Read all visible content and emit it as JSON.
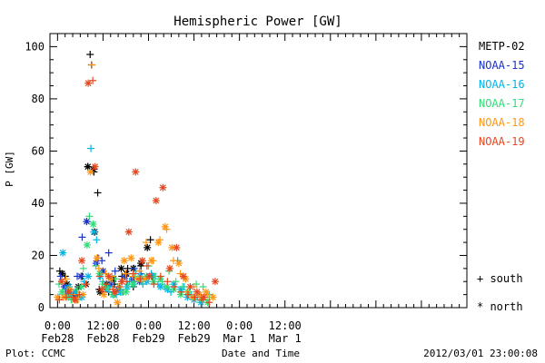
{
  "chart_data": {
    "type": "scatter",
    "title": "Hemispheric Power [GW]",
    "ylabel": "P [GW]",
    "xlabel": "Date and Time",
    "footer_left": "Plot: CCMC",
    "footer_right": "2012/03/01 23:00:08",
    "x_unit": "hours since 2012-02-28 00:00 UT",
    "xlim": [
      -2,
      108
    ],
    "ylim": [
      0,
      105
    ],
    "y_ticks": [
      0,
      20,
      40,
      60,
      80,
      100
    ],
    "x_ticks": [
      {
        "x": 0,
        "time": "0:00",
        "date": "Feb28"
      },
      {
        "x": 12,
        "time": "12:00",
        "date": "Feb28"
      },
      {
        "x": 24,
        "time": "0:00",
        "date": "Feb29"
      },
      {
        "x": 36,
        "time": "12:00",
        "date": "Feb29"
      },
      {
        "x": 48,
        "time": "0:00",
        "date": "Mar 1"
      },
      {
        "x": 60,
        "time": "12:00",
        "date": "Mar 1"
      }
    ],
    "grid": false,
    "legend_position": "right",
    "symbol_legend": [
      {
        "symbol": "+",
        "label": "south"
      },
      {
        "symbol": "*",
        "label": "north"
      }
    ],
    "series": [
      {
        "name": "METP-02",
        "color": "#000000",
        "south": [
          [
            0.6,
            14
          ],
          [
            2,
            12
          ],
          [
            3,
            7
          ],
          [
            5,
            6
          ],
          [
            6.5,
            12
          ],
          [
            8,
            54
          ],
          [
            8.6,
            97
          ],
          [
            9,
            93
          ],
          [
            9.6,
            52
          ],
          [
            10.6,
            44
          ],
          [
            11,
            7
          ],
          [
            12.5,
            8
          ],
          [
            13.5,
            6
          ],
          [
            15,
            9
          ],
          [
            17,
            12
          ],
          [
            18.5,
            15
          ],
          [
            20,
            8
          ],
          [
            22,
            16
          ],
          [
            24.5,
            26
          ],
          [
            25,
            12
          ]
        ],
        "north": [
          [
            1.2,
            13
          ],
          [
            2.5,
            9
          ],
          [
            4,
            5
          ],
          [
            5.5,
            8
          ],
          [
            7.5,
            9
          ],
          [
            8,
            54
          ],
          [
            9.4,
            53
          ],
          [
            9.8,
            29
          ],
          [
            11.2,
            6
          ],
          [
            13,
            9
          ],
          [
            14.8,
            11
          ],
          [
            16.8,
            15
          ],
          [
            18.2,
            13
          ],
          [
            20,
            15
          ],
          [
            22,
            17
          ],
          [
            23.7,
            23
          ]
        ]
      },
      {
        "name": "NOAA-15",
        "color": "#1832c8",
        "south": [
          [
            0.8,
            12
          ],
          [
            2.2,
            6
          ],
          [
            4,
            4
          ],
          [
            5.2,
            12
          ],
          [
            6.5,
            27
          ],
          [
            7.7,
            33
          ],
          [
            10.7,
            19
          ],
          [
            11.7,
            18
          ],
          [
            13.5,
            21
          ],
          [
            15.2,
            14
          ],
          [
            16.9,
            10
          ],
          [
            18.5,
            9
          ],
          [
            20.2,
            15
          ],
          [
            22,
            13
          ]
        ],
        "north": [
          [
            1.8,
            8
          ],
          [
            3.2,
            6
          ],
          [
            4.9,
            4
          ],
          [
            6.2,
            12
          ],
          [
            7.7,
            33
          ],
          [
            10.2,
            17
          ],
          [
            12,
            14
          ],
          [
            14,
            9
          ],
          [
            16,
            7
          ],
          [
            17.8,
            12
          ],
          [
            19.8,
            11
          ],
          [
            21.6,
            10
          ]
        ]
      },
      {
        "name": "NOAA-16",
        "color": "#00b4e6",
        "south": [
          [
            0.4,
            4
          ],
          [
            2,
            7
          ],
          [
            3.6,
            5
          ],
          [
            5.3,
            3
          ],
          [
            7,
            10
          ],
          [
            8.8,
            61
          ],
          [
            10.3,
            26
          ],
          [
            12,
            10
          ],
          [
            13.8,
            8
          ],
          [
            15.5,
            5
          ],
          [
            17.3,
            6
          ],
          [
            19,
            10
          ],
          [
            20.7,
            14
          ],
          [
            22.5,
            9
          ],
          [
            24.7,
            13
          ],
          [
            26.5,
            9
          ],
          [
            28.2,
            8
          ],
          [
            29.9,
            6
          ],
          [
            31.7,
            18
          ],
          [
            33.4,
            8
          ],
          [
            35.2,
            5
          ],
          [
            36.9,
            4
          ],
          [
            38.5,
            3
          ],
          [
            40,
            5
          ]
        ],
        "north": [
          [
            1.4,
            21
          ],
          [
            3,
            8
          ],
          [
            4.7,
            6
          ],
          [
            6.4,
            4
          ],
          [
            8.1,
            12
          ],
          [
            9.6,
            29
          ],
          [
            11.3,
            12
          ],
          [
            13.1,
            7
          ],
          [
            14.9,
            5
          ],
          [
            16.6,
            6
          ],
          [
            18.4,
            8
          ],
          [
            20.1,
            9
          ],
          [
            21.9,
            12
          ],
          [
            23.6,
            10
          ],
          [
            25.4,
            12
          ],
          [
            27.2,
            8
          ],
          [
            29,
            7
          ],
          [
            30.7,
            9
          ],
          [
            32.5,
            7
          ],
          [
            34.3,
            4
          ],
          [
            36,
            3
          ],
          [
            37.8,
            2
          ]
        ]
      },
      {
        "name": "NOAA-17",
        "color": "#32dc78",
        "south": [
          [
            0.4,
            9
          ],
          [
            2,
            5
          ],
          [
            3.6,
            3
          ],
          [
            5.2,
            7
          ],
          [
            6.8,
            15
          ],
          [
            8.4,
            35
          ],
          [
            10.1,
            16
          ],
          [
            11.8,
            9
          ],
          [
            13.5,
            7
          ],
          [
            15.2,
            11
          ],
          [
            16.9,
            6
          ],
          [
            18.6,
            9
          ],
          [
            20.4,
            12
          ],
          [
            22.2,
            10
          ],
          [
            24,
            16
          ],
          [
            25.8,
            12
          ],
          [
            27.6,
            10
          ],
          [
            29.4,
            14
          ],
          [
            31.2,
            10
          ],
          [
            33,
            8
          ],
          [
            34.8,
            6
          ],
          [
            36.6,
            9
          ],
          [
            38.4,
            8
          ],
          [
            40,
            4
          ]
        ],
        "north": [
          [
            1.2,
            6
          ],
          [
            2.9,
            4
          ],
          [
            4.6,
            3
          ],
          [
            6.3,
            8
          ],
          [
            7.8,
            24
          ],
          [
            9.4,
            32
          ],
          [
            11.1,
            13
          ],
          [
            12.8,
            8
          ],
          [
            14.6,
            5
          ],
          [
            16.3,
            8
          ],
          [
            18.1,
            6
          ],
          [
            19.9,
            9
          ],
          [
            21.7,
            11
          ],
          [
            23.5,
            12
          ],
          [
            25.3,
            10
          ],
          [
            27.1,
            11
          ],
          [
            28.9,
            8
          ],
          [
            30.7,
            7
          ],
          [
            32.5,
            5
          ],
          [
            34.3,
            6
          ],
          [
            36.1,
            4
          ],
          [
            37.9,
            3
          ],
          [
            39.6,
            2
          ]
        ]
      },
      {
        "name": "NOAA-18",
        "color": "#ff9614",
        "south": [
          [
            0.5,
            3
          ],
          [
            2.2,
            11
          ],
          [
            3.9,
            5
          ],
          [
            5.6,
            5
          ],
          [
            7.3,
            9
          ],
          [
            9.1,
            93
          ],
          [
            10.9,
            15
          ],
          [
            12.7,
            13
          ],
          [
            14.4,
            12
          ],
          [
            16.2,
            8
          ],
          [
            18,
            13
          ],
          [
            19.8,
            12
          ],
          [
            21.6,
            14
          ],
          [
            23.4,
            25
          ],
          [
            25.2,
            18
          ],
          [
            27,
            26
          ],
          [
            28.8,
            30
          ],
          [
            30.6,
            18
          ],
          [
            32.4,
            13
          ],
          [
            34.2,
            6
          ],
          [
            36,
            8
          ],
          [
            37.8,
            4
          ],
          [
            39.5,
            5
          ]
        ],
        "north": [
          [
            0,
            4
          ],
          [
            1.6,
            4
          ],
          [
            3.3,
            7
          ],
          [
            5,
            3
          ],
          [
            6.7,
            5
          ],
          [
            8.7,
            52
          ],
          [
            10.4,
            19
          ],
          [
            12.2,
            5
          ],
          [
            14,
            11
          ],
          [
            15.8,
            2
          ],
          [
            17.6,
            18
          ],
          [
            19.4,
            19
          ],
          [
            21.2,
            11
          ],
          [
            23,
            11
          ],
          [
            24.8,
            18
          ],
          [
            26.6,
            25
          ],
          [
            28.4,
            31
          ],
          [
            30.2,
            23
          ],
          [
            32,
            17
          ],
          [
            33.8,
            11
          ],
          [
            35.6,
            4
          ],
          [
            37.4,
            5
          ],
          [
            39.2,
            6
          ],
          [
            41,
            4
          ]
        ]
      },
      {
        "name": "NOAA-19",
        "color": "#e6461e",
        "south": [
          [
            0.5,
            3
          ],
          [
            2.3,
            4
          ],
          [
            4,
            4
          ],
          [
            5.8,
            5
          ],
          [
            7.5,
            9
          ],
          [
            9.3,
            87
          ],
          [
            11.1,
            12
          ],
          [
            12.9,
            9
          ],
          [
            14.6,
            7
          ],
          [
            16.4,
            8
          ],
          [
            18.2,
            10
          ],
          [
            20,
            13
          ],
          [
            21.8,
            11
          ],
          [
            23.6,
            16
          ],
          [
            25.4,
            9
          ],
          [
            27.2,
            12
          ],
          [
            29,
            10
          ],
          [
            30.8,
            8
          ],
          [
            32.6,
            6
          ],
          [
            34.4,
            5
          ],
          [
            36.2,
            4
          ],
          [
            38,
            3
          ],
          [
            40,
            2
          ]
        ],
        "north": [
          [
            1.1,
            10
          ],
          [
            2.9,
            6
          ],
          [
            4.6,
            3
          ],
          [
            6.4,
            18
          ],
          [
            8.1,
            86
          ],
          [
            9.9,
            54
          ],
          [
            11.7,
            7
          ],
          [
            13.5,
            12
          ],
          [
            15.2,
            6
          ],
          [
            17,
            10
          ],
          [
            18.8,
            29
          ],
          [
            20.6,
            52
          ],
          [
            22.4,
            18
          ],
          [
            24.2,
            12
          ],
          [
            26,
            41
          ],
          [
            27.8,
            46
          ],
          [
            29.6,
            15
          ],
          [
            31.4,
            23
          ],
          [
            33.2,
            12
          ],
          [
            35,
            8
          ],
          [
            36.8,
            6
          ],
          [
            38.6,
            4
          ],
          [
            41.6,
            10
          ]
        ]
      }
    ]
  }
}
